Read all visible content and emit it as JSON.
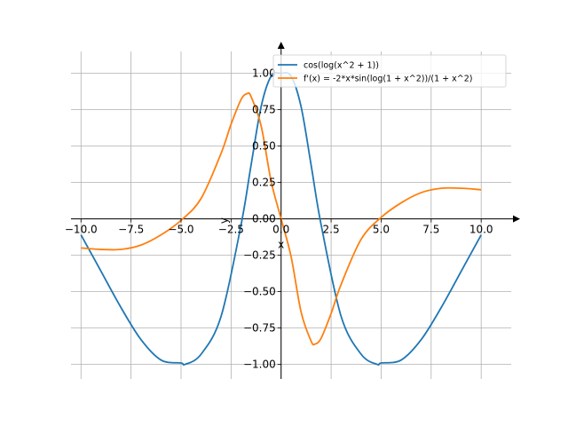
{
  "chart_data": {
    "type": "line",
    "title": "",
    "xlabel": "x",
    "ylabel": "y",
    "xlim": [
      -10.5,
      11.5
    ],
    "ylim": [
      -1.1,
      1.15
    ],
    "grid": true,
    "legend_position": "top-right",
    "x_ticks": [
      -10.0,
      -7.5,
      -5.0,
      -2.5,
      0.0,
      2.5,
      5.0,
      7.5,
      10.0
    ],
    "x_tick_labels": [
      "−10.0",
      "−7.5",
      "−5.0",
      "−2.5",
      "0.0",
      "2.5",
      "5.0",
      "7.5",
      "10.0"
    ],
    "y_ticks": [
      -1.0,
      -0.75,
      -0.5,
      -0.25,
      0.0,
      0.25,
      0.5,
      0.75,
      1.0
    ],
    "y_tick_labels": [
      "−1.00",
      "−0.75",
      "−0.50",
      "−0.25",
      "0.00",
      "0.25",
      "0.50",
      "0.75",
      "1.00"
    ],
    "x_range": [
      -10,
      10
    ],
    "series": [
      {
        "name": "cos(log(x^2 + 1))",
        "color": "#1f77b4",
        "points": [
          [
            -10,
            -0.11
          ],
          [
            -9,
            -0.36
          ],
          [
            -8,
            -0.61
          ],
          [
            -7,
            -0.83
          ],
          [
            -6,
            -0.97
          ],
          [
            -5,
            -0.99
          ],
          [
            -4.8,
            -1.0
          ],
          [
            -4,
            -0.93
          ],
          [
            -3,
            -0.67
          ],
          [
            -2,
            -0.04
          ],
          [
            -1.5,
            0.37
          ],
          [
            -1,
            0.77
          ],
          [
            -0.5,
            0.98
          ],
          [
            0,
            1.0
          ],
          [
            0.5,
            0.98
          ],
          [
            1,
            0.77
          ],
          [
            1.5,
            0.37
          ],
          [
            2,
            -0.04
          ],
          [
            3,
            -0.67
          ],
          [
            4,
            -0.93
          ],
          [
            4.8,
            -1.0
          ],
          [
            5,
            -0.99
          ],
          [
            6,
            -0.97
          ],
          [
            7,
            -0.83
          ],
          [
            8,
            -0.61
          ],
          [
            9,
            -0.36
          ],
          [
            10,
            -0.11
          ]
        ]
      },
      {
        "name": "f'(x) = -2*x*sin(log(1 + x^2))/(1 + x^2)",
        "color": "#ff7f0e",
        "points": [
          [
            -10,
            -0.2
          ],
          [
            -9,
            -0.21
          ],
          [
            -8,
            -0.21
          ],
          [
            -7,
            -0.18
          ],
          [
            -6,
            -0.11
          ],
          [
            -5,
            -0.01
          ],
          [
            -4,
            0.14
          ],
          [
            -3,
            0.45
          ],
          [
            -2.5,
            0.65
          ],
          [
            -2,
            0.82
          ],
          [
            -1.7,
            0.86
          ],
          [
            -1.5,
            0.84
          ],
          [
            -1,
            0.64
          ],
          [
            -0.5,
            0.26
          ],
          [
            0,
            0.0
          ],
          [
            0.5,
            -0.26
          ],
          [
            1,
            -0.64
          ],
          [
            1.5,
            -0.84
          ],
          [
            1.7,
            -0.86
          ],
          [
            2,
            -0.82
          ],
          [
            2.5,
            -0.65
          ],
          [
            3,
            -0.45
          ],
          [
            4,
            -0.14
          ],
          [
            5,
            0.01
          ],
          [
            6,
            0.11
          ],
          [
            7,
            0.18
          ],
          [
            8,
            0.21
          ],
          [
            9,
            0.21
          ],
          [
            10,
            0.2
          ]
        ]
      }
    ]
  }
}
